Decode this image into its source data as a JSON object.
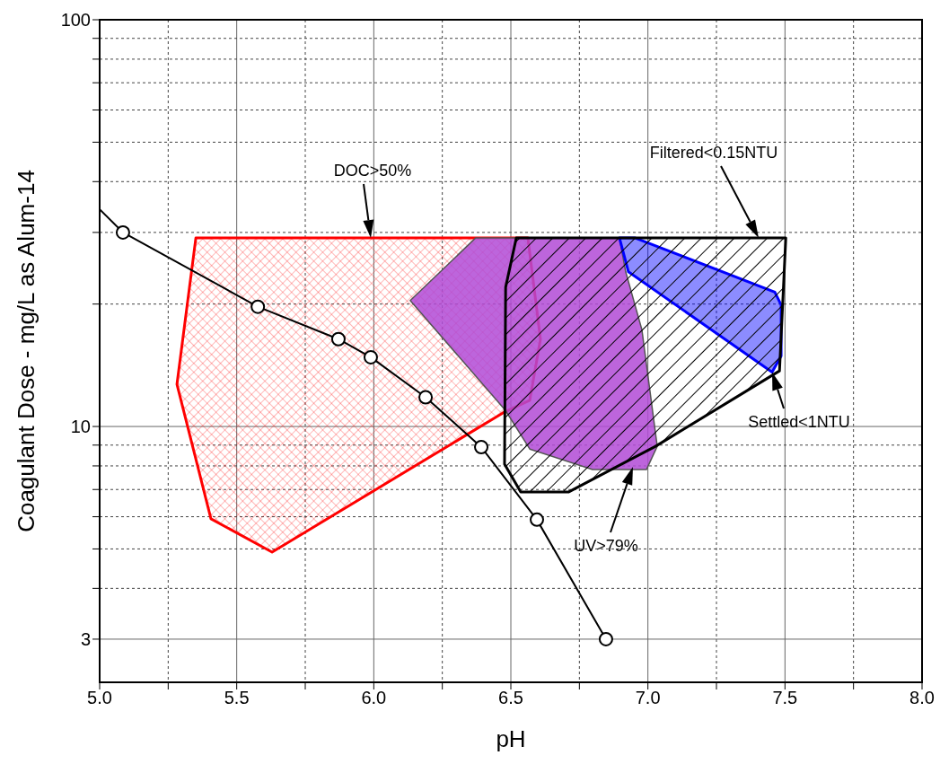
{
  "chart_data": {
    "type": "line",
    "xlabel": "pH",
    "ylabel": "Coagulant Dose - mg/L as Alum-14",
    "xlim": [
      5.0,
      8.0
    ],
    "xticks": [
      {
        "value": 5.0,
        "label": "5.0"
      },
      {
        "value": 5.25,
        "label": null
      },
      {
        "value": 5.5,
        "label": "5.5"
      },
      {
        "value": 5.75,
        "label": null
      },
      {
        "value": 6.0,
        "label": "6.0"
      },
      {
        "value": 6.25,
        "label": null
      },
      {
        "value": 6.5,
        "label": "6.5"
      },
      {
        "value": 6.75,
        "label": null
      },
      {
        "value": 7.0,
        "label": "7.0"
      },
      {
        "value": 7.25,
        "label": null
      },
      {
        "value": 7.5,
        "label": "7.5"
      },
      {
        "value": 7.75,
        "label": null
      },
      {
        "value": 8.0,
        "label": "8.0"
      }
    ],
    "ylim": [
      2.35,
      100
    ],
    "log": "y",
    "yticks": [
      3,
      {
        "value": 4,
        "label": null
      },
      {
        "value": 5,
        "label": null
      },
      {
        "value": 6,
        "label": null
      },
      {
        "value": 7,
        "label": null
      },
      {
        "value": 8,
        "label": null
      },
      {
        "value": 9,
        "label": null
      },
      10,
      {
        "value": 20,
        "label": null
      },
      {
        "value": 30,
        "label": null
      },
      {
        "value": 40,
        "label": null
      },
      {
        "value": 50,
        "label": null
      },
      {
        "value": 60,
        "label": null
      },
      {
        "value": 70,
        "label": null
      },
      {
        "value": 80,
        "label": null
      },
      {
        "value": 90,
        "label": null
      },
      100
    ],
    "grid": true,
    "series": [
      {
        "type": "area",
        "color": "#ff0000",
        "x": [
          5.351,
          6.562,
          6.608,
          6.569,
          6.471,
          5.629,
          5.406,
          5.282
        ],
        "values": [
          29.1,
          29.1,
          16.4,
          11.6,
          10.8,
          4.91,
          5.93,
          12.7
        ]
      },
      {
        "type": "area",
        "color": "#b24ad6",
        "x": [
          6.133,
          6.372,
          6.896,
          6.919,
          6.978,
          7.034,
          6.995,
          6.798,
          6.569,
          6.48
        ],
        "values": [
          20.4,
          29.1,
          29.1,
          24.0,
          17.3,
          8.94,
          7.84,
          7.84,
          8.8,
          10.96
        ]
      },
      {
        "type": "area",
        "color": "#0000ff",
        "x": [
          6.896,
          6.952,
          7.463,
          7.486,
          7.486,
          7.453,
          6.929
        ],
        "values": [
          29.1,
          29.1,
          21.4,
          19.9,
          14.9,
          13.6,
          24.0
        ]
      },
      {
        "type": "area",
        "color": "#000000",
        "x": [
          6.52,
          7.503,
          7.48,
          7.028,
          6.71,
          6.536,
          6.477,
          6.481
        ],
        "values": [
          29.1,
          29.1,
          13.7,
          8.94,
          6.9,
          6.9,
          8.08,
          22.0
        ]
      },
      {
        "color": "#000000",
        "x": [
          5.0,
          5.085
        ],
        "values": [
          34.2,
          30
        ]
      },
      {
        "color": "#000000",
        "marker": "circle",
        "x": [
          5.085,
          5.577,
          5.871,
          5.989,
          6.189,
          6.392,
          6.595,
          6.847
        ],
        "values": [
          30,
          19.7,
          16.4,
          14.8,
          11.8,
          8.9,
          5.9,
          3.0
        ]
      }
    ],
    "annotations": [
      "DOC>50%",
      "Filtered<0.15NTU",
      {
        "text": "Settled<1NTU",
        "x": 7.453,
        "y": 13.6
      },
      "UV>79%"
    ]
  }
}
